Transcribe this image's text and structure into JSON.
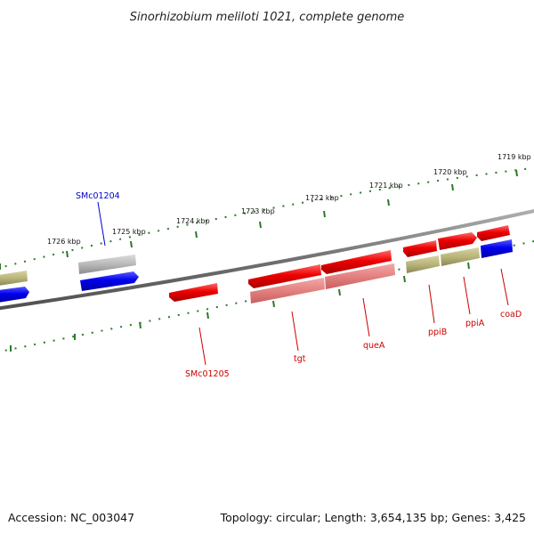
{
  "title": "Sinorhizobium meliloti 1021, complete genome",
  "accession": "Accession: NC_003047",
  "summary": "Topology: circular; Length: 3,654,135 bp; Genes: 3,425",
  "colors": {
    "backbone": "#808080",
    "tick": "#2a7a2a",
    "forward_gene": "#e00000",
    "reverse_gene": "#0000e0",
    "cds_pale_red": "#e88080",
    "cds_khaki": "#b8b47a",
    "cds_grey": "#b8b8b8",
    "label_blue": "#0000cc",
    "label_red": "#cc0000"
  },
  "tick_labels": [
    {
      "id": "t1726",
      "text": "1726 kbp"
    },
    {
      "id": "t1725",
      "text": "1725 kbp"
    },
    {
      "id": "t1724",
      "text": "1724 kbp"
    },
    {
      "id": "t1723",
      "text": "1723 kbp"
    },
    {
      "id": "t1722",
      "text": "1722 kbp"
    },
    {
      "id": "t1721",
      "text": "1721 kbp"
    },
    {
      "id": "t1720",
      "text": "1720 kbp"
    },
    {
      "id": "t1719",
      "text": "1719 kbp"
    }
  ],
  "gene_labels": [
    {
      "id": "smc01204",
      "text": "SMc01204",
      "color": "blue"
    },
    {
      "id": "smc01205",
      "text": "SMc01205",
      "color": "red"
    },
    {
      "id": "tgt",
      "text": "tgt",
      "color": "red"
    },
    {
      "id": "quea",
      "text": "queA",
      "color": "red"
    },
    {
      "id": "ppib",
      "text": "ppiB",
      "color": "red"
    },
    {
      "id": "ppia",
      "text": "ppiA",
      "color": "red"
    },
    {
      "id": "coad",
      "text": "coaD",
      "color": "red"
    }
  ]
}
